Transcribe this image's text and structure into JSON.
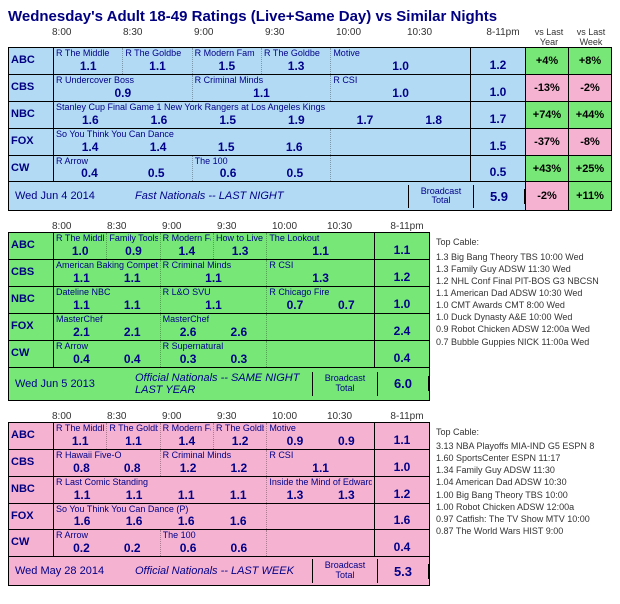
{
  "title": "Wednesday's Adult 18-49 Ratings (Live+Same Day) vs Similar Nights",
  "timeHeaders": [
    "8:00",
    "8:30",
    "9:00",
    "9:30",
    "10:00",
    "10:30"
  ],
  "totalHeader": "8-11pm",
  "vsYearHeader": "vs Last Year",
  "vsWeekHeader": "vs Last Week",
  "broadcastTotalLabel": "Broadcast Total",
  "topCableLabel": "Top Cable:",
  "panels": [
    {
      "bgClass": "panel-blue",
      "date": "Wed Jun 4 2014",
      "footerLabel": "Fast Nationals -- LAST NIGHT",
      "broadcastTotal": "5.9",
      "vsYear": {
        "val": "-2%",
        "cls": "vs-neg"
      },
      "vsWeek": {
        "val": "+11%",
        "cls": "vs-pos"
      },
      "networks": [
        {
          "net": "ABC",
          "total": "1.2",
          "vy": {
            "val": "+4%",
            "cls": "vs-pos"
          },
          "vw": {
            "val": "+8%",
            "cls": "vs-pos"
          },
          "shows": [
            {
              "t": "R The Middle",
              "r": "1.1",
              "w": 1
            },
            {
              "t": "R The Goldbe",
              "r": "1.1",
              "w": 1
            },
            {
              "t": "R Modern Fam",
              "r": "1.5",
              "w": 1
            },
            {
              "t": "R The Goldbe",
              "r": "1.3",
              "w": 1
            },
            {
              "t": "Motive",
              "r": "1.0",
              "w": 2
            }
          ]
        },
        {
          "net": "CBS",
          "total": "1.0",
          "vy": {
            "val": "-13%",
            "cls": "vs-neg"
          },
          "vw": {
            "val": "-2%",
            "cls": "vs-neg"
          },
          "shows": [
            {
              "t": "R Undercover Boss",
              "r": "0.9",
              "w": 2
            },
            {
              "t": "R Criminal Minds",
              "r": "1.1",
              "w": 2
            },
            {
              "t": "R CSI",
              "r": "1.0",
              "w": 2
            }
          ]
        },
        {
          "net": "NBC",
          "total": "1.7",
          "vy": {
            "val": "+74%",
            "cls": "vs-pos"
          },
          "vw": {
            "val": "+44%",
            "cls": "vs-pos"
          },
          "shows": [
            {
              "t": "Stanley Cup Final Game 1 New York Rangers at Los Angeles Kings",
              "r": "",
              "w": 6,
              "sub": [
                "1.6",
                "1.6",
                "1.5",
                "1.9",
                "1.7",
                "1.8"
              ]
            }
          ]
        },
        {
          "net": "FOX",
          "total": "1.5",
          "vy": {
            "val": "-37%",
            "cls": "vs-neg"
          },
          "vw": {
            "val": "-8%",
            "cls": "vs-neg"
          },
          "shows": [
            {
              "t": "So You Think You Can Dance",
              "r": "",
              "w": 4,
              "sub": [
                "1.4",
                "1.4",
                "1.5",
                "1.6"
              ]
            },
            {
              "t": "",
              "r": "",
              "w": 2,
              "empty": true
            }
          ]
        },
        {
          "net": "CW",
          "total": "0.5",
          "vy": {
            "val": "+43%",
            "cls": "vs-pos"
          },
          "vw": {
            "val": "+25%",
            "cls": "vs-pos"
          },
          "shows": [
            {
              "t": "R Arrow",
              "r": "",
              "w": 2,
              "sub": [
                "0.4",
                "0.5"
              ]
            },
            {
              "t": "The 100",
              "r": "",
              "w": 2,
              "sub": [
                "0.6",
                "0.5"
              ]
            },
            {
              "t": "",
              "r": "",
              "w": 2,
              "empty": true
            }
          ]
        }
      ]
    },
    {
      "bgClass": "panel-green",
      "date": "Wed Jun 5 2013",
      "footerLabel": "Official Nationals -- SAME NIGHT LAST YEAR",
      "broadcastTotal": "6.0",
      "sideList": [
        "1.3 Big Bang Theory TBS 10:00 Wed",
        "1.3 Family Guy ADSW 11:30 Wed",
        "1.2 NHL Conf Final PIT-BOS G3 NBCSN",
        "1.1 American Dad ADSW 10:30 Wed",
        "1.0 CMT Awards CMT 8:00 Wed",
        "1.0 Duck Dynasty A&E 10:00 Wed",
        "0.9 Robot Chicken ADSW 12:00a Wed",
        "0.7 Bubble Guppies NICK 11:00a Wed"
      ],
      "networks": [
        {
          "net": "ABC",
          "total": "1.1",
          "shows": [
            {
              "t": "R The Middle",
              "r": "1.0",
              "w": 1
            },
            {
              "t": "Family Tools",
              "r": "0.9",
              "w": 1
            },
            {
              "t": "R Modern Fam",
              "r": "1.4",
              "w": 1
            },
            {
              "t": "How to Live w",
              "r": "1.3",
              "w": 1
            },
            {
              "t": "The Lookout",
              "r": "1.1",
              "w": 2
            }
          ]
        },
        {
          "net": "CBS",
          "total": "1.2",
          "shows": [
            {
              "t": "American Baking Competition",
              "r": "",
              "w": 2,
              "sub": [
                "1.1",
                "1.1"
              ]
            },
            {
              "t": "R Criminal Minds",
              "r": "1.1",
              "w": 2
            },
            {
              "t": "R CSI",
              "r": "1.3",
              "w": 2
            }
          ]
        },
        {
          "net": "NBC",
          "total": "1.0",
          "shows": [
            {
              "t": "Dateline NBC",
              "r": "",
              "w": 2,
              "sub": [
                "1.1",
                "1.1"
              ]
            },
            {
              "t": "R L&O SVU",
              "r": "1.1",
              "w": 2
            },
            {
              "t": "R Chicago Fire",
              "r": "",
              "w": 2,
              "sub": [
                "0.7",
                "0.7"
              ]
            }
          ]
        },
        {
          "net": "FOX",
          "total": "2.4",
          "shows": [
            {
              "t": "MasterChef",
              "r": "",
              "w": 2,
              "sub": [
                "2.1",
                "2.1"
              ]
            },
            {
              "t": "MasterChef",
              "r": "",
              "w": 2,
              "sub": [
                "2.6",
                "2.6"
              ]
            },
            {
              "t": "",
              "r": "",
              "w": 2,
              "empty": true
            }
          ]
        },
        {
          "net": "CW",
          "total": "0.4",
          "shows": [
            {
              "t": "R Arrow",
              "r": "",
              "w": 2,
              "sub": [
                "0.4",
                "0.4"
              ]
            },
            {
              "t": "R Supernatural",
              "r": "",
              "w": 2,
              "sub": [
                "0.3",
                "0.3"
              ]
            },
            {
              "t": "",
              "r": "",
              "w": 2,
              "empty": true
            }
          ]
        }
      ]
    },
    {
      "bgClass": "panel-pink",
      "date": "Wed May 28 2014",
      "footerLabel": "Official Nationals -- LAST WEEK",
      "broadcastTotal": "5.3",
      "sideList": [
        "3.13 NBA Playoffs MIA-IND G5 ESPN 8",
        "1.60 SportsCenter ESPN 11:17",
        "1.34 Family Guy ADSW 11:30",
        "1.04 American Dad ADSW 10:30",
        "1.00 Big Bang Theory TBS 10:00",
        "1.00 Robot Chicken ADSW 12:00a",
        "0.97 Catfish: The TV Show MTV 10:00",
        "0.87 The World Wars HIST 9:00"
      ],
      "networks": [
        {
          "net": "ABC",
          "total": "1.1",
          "shows": [
            {
              "t": "R The Middle",
              "r": "1.1",
              "w": 1
            },
            {
              "t": "R The Goldbe",
              "r": "1.1",
              "w": 1
            },
            {
              "t": "R Modern Fam",
              "r": "1.4",
              "w": 1
            },
            {
              "t": "R The Goldbe",
              "r": "1.2",
              "w": 1
            },
            {
              "t": "Motive",
              "r": "",
              "w": 2,
              "sub": [
                "0.9",
                "0.9"
              ]
            }
          ]
        },
        {
          "net": "CBS",
          "total": "1.0",
          "shows": [
            {
              "t": "R Hawaii Five-O",
              "r": "",
              "w": 2,
              "sub": [
                "0.8",
                "0.8"
              ]
            },
            {
              "t": "R Criminal Minds",
              "r": "",
              "w": 2,
              "sub": [
                "1.2",
                "1.2"
              ]
            },
            {
              "t": "R CSI",
              "r": "1.1",
              "w": 2
            }
          ]
        },
        {
          "net": "NBC",
          "total": "1.2",
          "shows": [
            {
              "t": "R Last Comic Standing",
              "r": "",
              "w": 4,
              "sub": [
                "1.1",
                "1.1",
                "1.1",
                "1.1"
              ]
            },
            {
              "t": "Inside the Mind of Edward S",
              "r": "",
              "w": 2,
              "sub": [
                "1.3",
                "1.3"
              ]
            }
          ]
        },
        {
          "net": "FOX",
          "total": "1.6",
          "shows": [
            {
              "t": "So You Think You Can Dance (P)",
              "r": "",
              "w": 4,
              "sub": [
                "1.6",
                "1.6",
                "1.6",
                "1.6"
              ]
            },
            {
              "t": "",
              "r": "",
              "w": 2,
              "empty": true
            }
          ]
        },
        {
          "net": "CW",
          "total": "0.4",
          "shows": [
            {
              "t": "R Arrow",
              "r": "",
              "w": 2,
              "sub": [
                "0.2",
                "0.2"
              ]
            },
            {
              "t": "The 100",
              "r": "",
              "w": 2,
              "sub": [
                "0.6",
                "0.6"
              ]
            },
            {
              "t": "",
              "r": "",
              "w": 2,
              "empty": true
            }
          ]
        }
      ]
    }
  ]
}
